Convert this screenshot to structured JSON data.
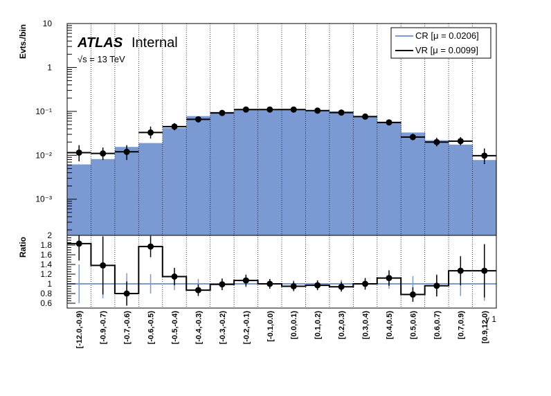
{
  "chart_data": [
    {
      "type": "bar",
      "yscale": "log",
      "ylabel": "Evts./bin",
      "ylim": [
        0.00015,
        10
      ],
      "y_ticks": [
        {
          "value": 10,
          "label": "10"
        },
        {
          "value": 1,
          "label": "1"
        },
        {
          "value": 0.1,
          "label": "10⁻¹"
        },
        {
          "value": 0.01,
          "label": "10⁻²"
        },
        {
          "value": 0.001,
          "label": "10⁻³"
        }
      ],
      "grid": "vertical-dotted",
      "legend_position": "top-right",
      "colors": {
        "cr": "#7b9ad4",
        "vr": "#000000"
      },
      "annotations": {
        "atlas": "ATLAS",
        "internal": "Internal",
        "energy": "√s = 13 TeV"
      },
      "categories": [
        "[-12.0,-0.9)",
        "[-0.9,-0.7)",
        "[-0.7,-0.6)",
        "[-0.6,-0.5)",
        "[-0.5,-0.4)",
        "[-0.4,-0.3)",
        "[-0.3,-0.2)",
        "[-0.2,-0.1)",
        "[-0.1,0.0)",
        "[0.0,0.1)",
        "[0.1,0.2)",
        "[0.2,0.3)",
        "[0.3,0.4)",
        "[0.4,0.5)",
        "[0.5,0.6)",
        "[0.6,0.7)",
        "[0.7,0.9)",
        "[0.9,12.0)"
      ],
      "series": [
        {
          "name": "CR [μ = 0.0206]",
          "style": "filled-histogram",
          "values": [
            0.0062,
            0.0082,
            0.0155,
            0.019,
            0.042,
            0.078,
            0.097,
            0.112,
            0.112,
            0.11,
            0.106,
            0.1,
            0.078,
            0.058,
            0.033,
            0.022,
            0.0175,
            0.0078
          ]
        },
        {
          "name": "VR [μ = 0.0099]",
          "style": "points-with-errors",
          "values": [
            0.0115,
            0.011,
            0.012,
            0.033,
            0.045,
            0.066,
            0.092,
            0.11,
            0.11,
            0.11,
            0.104,
            0.094,
            0.076,
            0.056,
            0.026,
            0.02,
            0.021,
            0.0098
          ],
          "err_low": [
            0.0042,
            0.0032,
            0.0042,
            0.009,
            0.008,
            0.01,
            0.01,
            0.01,
            0.01,
            0.01,
            0.01,
            0.009,
            0.008,
            0.007,
            0.004,
            0.004,
            0.004,
            0.0035
          ],
          "err_high": [
            0.0055,
            0.004,
            0.005,
            0.012,
            0.009,
            0.011,
            0.011,
            0.011,
            0.011,
            0.011,
            0.011,
            0.01,
            0.009,
            0.008,
            0.005,
            0.005,
            0.005,
            0.0045
          ]
        }
      ]
    },
    {
      "type": "line",
      "ylabel": "Ratio",
      "xlabel": "γ 1",
      "ylim": [
        0.5,
        2.0
      ],
      "y_ticks": [
        {
          "value": 2,
          "label": "2"
        },
        {
          "value": 1.8,
          "label": "1.8"
        },
        {
          "value": 1.6,
          "label": "1.6"
        },
        {
          "value": 1.4,
          "label": "1.4"
        },
        {
          "value": 1.2,
          "label": "1.2"
        },
        {
          "value": 1.0,
          "label": "1"
        },
        {
          "value": 0.8,
          "label": "0.8"
        },
        {
          "value": 0.6,
          "label": "0.6"
        }
      ],
      "reference_line": 1.0,
      "series": [
        {
          "name": "",
          "values": [
            1.83,
            1.38,
            0.8,
            1.77,
            1.15,
            0.87,
            0.99,
            1.07,
            1.0,
            0.95,
            0.97,
            0.94,
            1.0,
            1.12,
            0.78,
            0.96,
            1.27,
            1.27
          ],
          "err": [
            0.35,
            0.6,
            0.25,
            0.22,
            0.18,
            0.12,
            0.12,
            0.12,
            0.1,
            0.1,
            0.1,
            0.1,
            0.12,
            0.16,
            0.15,
            0.22,
            0.3,
            0.55
          ]
        },
        {
          "name": "",
          "values": [
            1,
            1,
            1,
            1,
            1,
            1,
            1,
            1,
            1,
            1,
            1,
            1,
            1,
            1,
            1,
            1,
            1,
            1
          ],
          "err": [
            0.4,
            0.3,
            0.22,
            0.2,
            0.13,
            0.1,
            0.08,
            0.07,
            0.07,
            0.07,
            0.07,
            0.08,
            0.09,
            0.1,
            0.16,
            0.2,
            0.25,
            0.35
          ]
        }
      ]
    }
  ]
}
